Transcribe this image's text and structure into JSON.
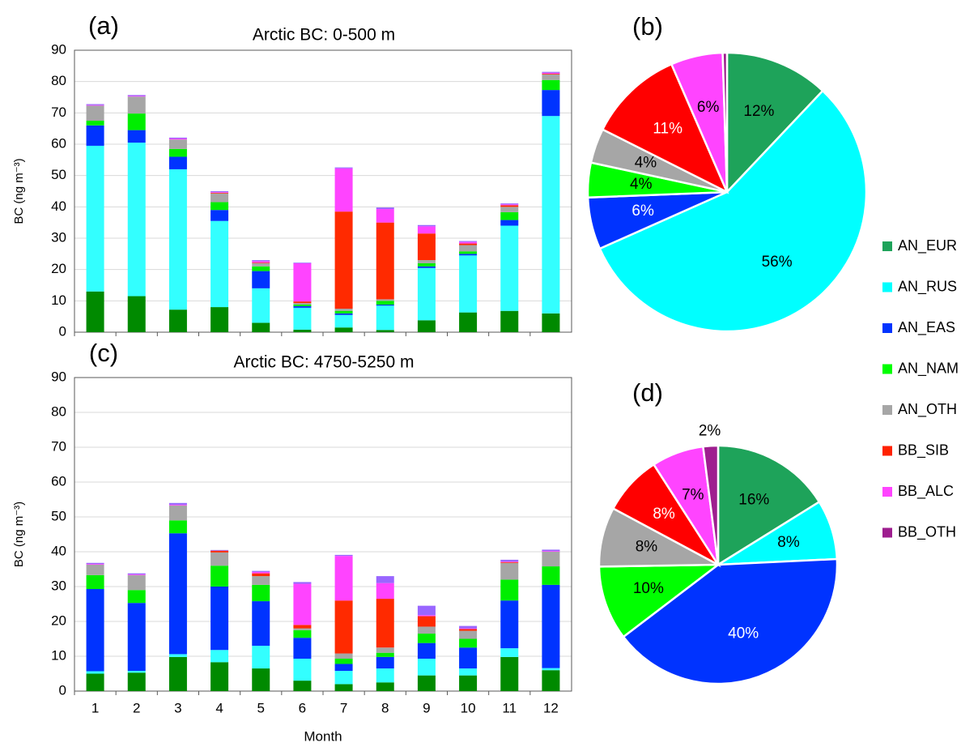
{
  "legend": {
    "entries": [
      {
        "name": "AN_EUR",
        "color": "#1ea35a"
      },
      {
        "name": "AN_RUS",
        "color": "#00ffff"
      },
      {
        "name": "AN_EAS",
        "color": "#0033ff"
      },
      {
        "name": "AN_NAM",
        "color": "#00ff00"
      },
      {
        "name": "AN_OTH",
        "color": "#a6a6a6"
      },
      {
        "name": "BB_SIB",
        "color": "#ff2200"
      },
      {
        "name": "BB_ALC",
        "color": "#ff44ff"
      },
      {
        "name": "BB_OTH",
        "color": "#9e1e8f"
      }
    ]
  },
  "chart_data": [
    {
      "type": "bar",
      "panel_label": "(a)",
      "title": "Arctic BC: 0-500 m",
      "y_label": "BC (ng m⁻³)",
      "categories": [
        null,
        null,
        null,
        null,
        null,
        null,
        null,
        null,
        null,
        null,
        null,
        null
      ],
      "ylim": [
        0,
        90
      ],
      "yticks": [
        0,
        10,
        20,
        30,
        40,
        50,
        60,
        70,
        80,
        90
      ],
      "grid": true,
      "stacked": true,
      "series": [
        {
          "color": "#008a00",
          "values": [
            13,
            11.5,
            7.2,
            8,
            3,
            0.8,
            1.5,
            0.7,
            3.8,
            6.3,
            6.8,
            6
          ]
        },
        {
          "color": "#33ffff",
          "values": [
            46.5,
            49,
            44.8,
            27.5,
            11,
            7,
            4,
            7.8,
            16.7,
            18.2,
            27.2,
            63
          ]
        },
        {
          "color": "#0033ff",
          "values": [
            6.5,
            4,
            4,
            3.5,
            5.5,
            0.5,
            0.5,
            0.3,
            0.5,
            0.5,
            1.8,
            8.3
          ]
        },
        {
          "color": "#00ee00",
          "values": [
            1.5,
            5.3,
            2.5,
            2.5,
            1.5,
            0.5,
            0.8,
            1.2,
            1,
            0.8,
            2.5,
            3.2
          ]
        },
        {
          "color": "#a6a6a6",
          "values": [
            4.8,
            5.4,
            3,
            2.8,
            1,
            0.5,
            0.7,
            0.5,
            1,
            2,
            1.7,
            1.8
          ]
        },
        {
          "color": "#ff2a00",
          "values": [
            0,
            0,
            0,
            0.2,
            0.2,
            0.5,
            31,
            24.5,
            8.5,
            0.5,
            0.5,
            0.2
          ]
        },
        {
          "color": "#ff44ff",
          "values": [
            0.2,
            0.2,
            0.3,
            0.2,
            0.5,
            12.2,
            13.8,
            4.3,
            2.3,
            0.5,
            0.3,
            0.3
          ]
        },
        {
          "color": "#9966ff",
          "values": [
            0.3,
            0.3,
            0.3,
            0.3,
            0.3,
            0.2,
            0.3,
            0.5,
            0.4,
            0.3,
            0.3,
            0.3
          ]
        }
      ]
    },
    {
      "type": "pie",
      "panel_label": "(b)",
      "values": [
        12,
        56,
        6,
        4,
        4,
        11,
        6,
        0.5
      ],
      "value_labels": [
        "12%",
        "56%",
        "6%",
        "4%",
        "4%",
        "11%",
        "6%",
        null
      ],
      "colors": [
        "#1ea35a",
        "#00ffff",
        "#0033ff",
        "#00ff00",
        "#a6a6a6",
        "#ff0000",
        "#ff44ff",
        "#9e1e8f"
      ]
    },
    {
      "type": "bar",
      "panel_label": "(c)",
      "title": "Arctic BC: 4750-5250 m",
      "y_label": "BC (ng m⁻³)",
      "x_label": "Month",
      "categories": [
        1,
        2,
        3,
        4,
        5,
        6,
        7,
        8,
        9,
        10,
        11,
        12
      ],
      "ylim": [
        0,
        90
      ],
      "yticks": [
        0,
        10,
        20,
        30,
        40,
        50,
        60,
        70,
        80,
        90
      ],
      "grid": true,
      "stacked": true,
      "series": [
        {
          "color": "#008a00",
          "values": [
            5,
            5.3,
            9.8,
            8.3,
            6.5,
            3,
            2,
            2.5,
            4.5,
            4.5,
            9.8,
            6
          ]
        },
        {
          "color": "#33ffff",
          "values": [
            0.7,
            0.5,
            0.8,
            3.5,
            6.5,
            6.3,
            3.8,
            4,
            4.8,
            2,
            2.5,
            0.6
          ]
        },
        {
          "color": "#0033ff",
          "values": [
            23.6,
            19.5,
            34.7,
            18.2,
            12.8,
            6,
            2,
            3.3,
            4.5,
            6,
            13.7,
            23.9
          ]
        },
        {
          "color": "#00ee00",
          "values": [
            4,
            3.7,
            3.7,
            6,
            4.7,
            2.2,
            1.5,
            1.2,
            2.7,
            2.5,
            6,
            5.3
          ]
        },
        {
          "color": "#a6a6a6",
          "values": [
            3,
            4.3,
            4.3,
            3.8,
            2.5,
            0.5,
            1.5,
            1.5,
            2,
            2.3,
            4.8,
            4.2
          ]
        },
        {
          "color": "#ff2a00",
          "values": [
            0,
            0,
            0,
            0.5,
            0.8,
            1,
            15.2,
            14,
            3,
            0.5,
            0.2,
            0
          ]
        },
        {
          "color": "#ff44ff",
          "values": [
            0.2,
            0.2,
            0.2,
            0,
            0.4,
            11.8,
            12.8,
            4.5,
            0.3,
            0.2,
            0.2,
            0.2
          ]
        },
        {
          "color": "#9966ff",
          "values": [
            0.3,
            0.3,
            0.5,
            0.2,
            0.3,
            0.5,
            0.3,
            2,
            2.7,
            0.7,
            0.5,
            0.4
          ]
        }
      ]
    },
    {
      "type": "pie",
      "panel_label": "(d)",
      "values": [
        16,
        8,
        40,
        10,
        8,
        8,
        7,
        2
      ],
      "value_labels": [
        "16%",
        "8%",
        "40%",
        "10%",
        "8%",
        "8%",
        "7%",
        "2%"
      ],
      "colors": [
        "#1ea35a",
        "#00ffff",
        "#0033ff",
        "#00ff00",
        "#a6a6a6",
        "#ff0000",
        "#ff44ff",
        "#9e1e8f"
      ]
    }
  ]
}
